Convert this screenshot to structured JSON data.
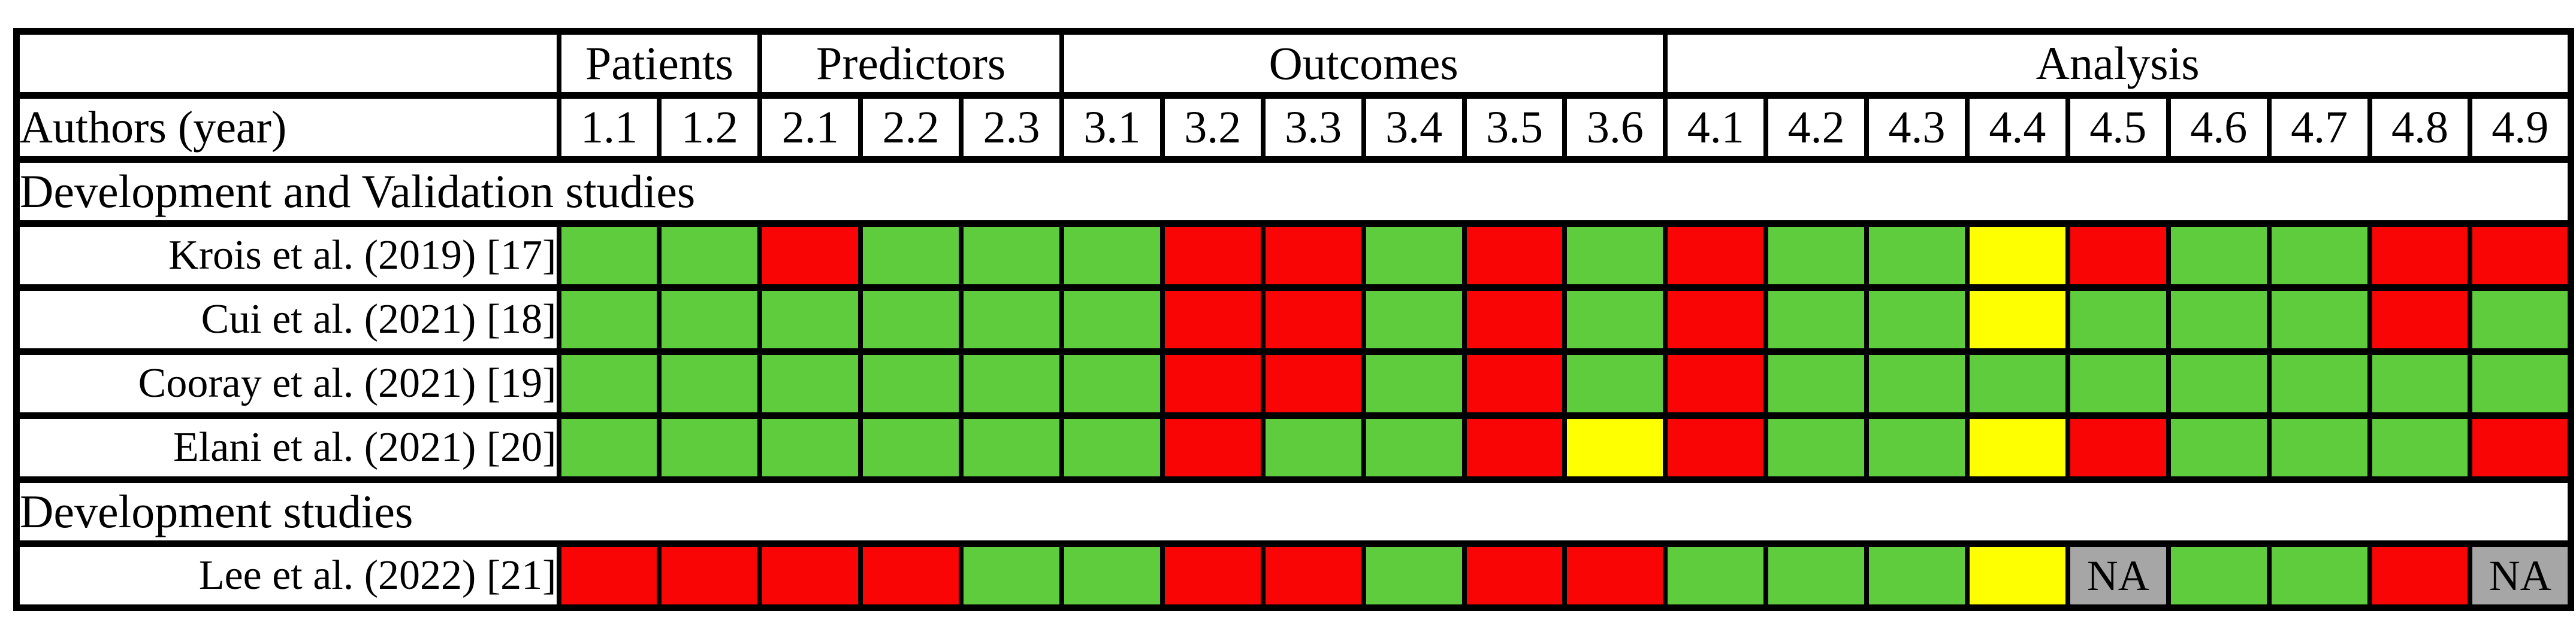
{
  "chart_data": {
    "type": "heatmap",
    "description": "Risk of bias traffic-light table (PROBAST-style) for dental prediction model studies",
    "row_label_header": "Authors (year)",
    "column_groups": [
      {
        "label": "",
        "span": 1
      },
      {
        "label": "Patients",
        "span": 2
      },
      {
        "label": "Predictors",
        "span": 3
      },
      {
        "label": "Outcomes",
        "span": 6
      },
      {
        "label": "Analysis",
        "span": 9
      }
    ],
    "columns": [
      "1.1",
      "1.2",
      "2.1",
      "2.2",
      "2.3",
      "3.1",
      "3.2",
      "3.3",
      "3.4",
      "3.5",
      "3.6",
      "4.1",
      "4.2",
      "4.3",
      "4.4",
      "4.5",
      "4.6",
      "4.7",
      "4.8",
      "4.9"
    ],
    "sections": [
      {
        "title": "Development and Validation studies",
        "rows": [
          {
            "author": "Krois et al. (2019) [17]",
            "ratings": [
              "green",
              "green",
              "red",
              "green",
              "green",
              "green",
              "red",
              "red",
              "green",
              "red",
              "green",
              "red",
              "green",
              "green",
              "yellow",
              "red",
              "green",
              "green",
              "red",
              "red"
            ]
          },
          {
            "author": "Cui et al. (2021) [18]",
            "ratings": [
              "green",
              "green",
              "green",
              "green",
              "green",
              "green",
              "red",
              "red",
              "green",
              "red",
              "green",
              "red",
              "green",
              "green",
              "yellow",
              "green",
              "green",
              "green",
              "red",
              "green"
            ]
          },
          {
            "author": "Cooray et al. (2021) [19]",
            "ratings": [
              "green",
              "green",
              "green",
              "green",
              "green",
              "green",
              "red",
              "red",
              "green",
              "red",
              "green",
              "red",
              "green",
              "green",
              "green",
              "green",
              "green",
              "green",
              "green",
              "green"
            ]
          },
          {
            "author": "Elani et al. (2021) [20]",
            "ratings": [
              "green",
              "green",
              "green",
              "green",
              "green",
              "green",
              "red",
              "green",
              "green",
              "red",
              "yellow",
              "red",
              "green",
              "green",
              "yellow",
              "red",
              "green",
              "green",
              "green",
              "red"
            ]
          }
        ]
      },
      {
        "title": "Development studies",
        "rows": [
          {
            "author": "Lee et al. (2022) [21]",
            "ratings": [
              "red",
              "red",
              "red",
              "red",
              "green",
              "green",
              "red",
              "red",
              "green",
              "red",
              "red",
              "green",
              "green",
              "green",
              "yellow",
              "na",
              "green",
              "green",
              "red",
              "na"
            ]
          }
        ]
      }
    ],
    "na_label": "NA",
    "colors": {
      "green": "#5ECC3D",
      "red": "#FA0505",
      "yellow": "#FEFF00",
      "na": "#A6A6A6"
    }
  }
}
